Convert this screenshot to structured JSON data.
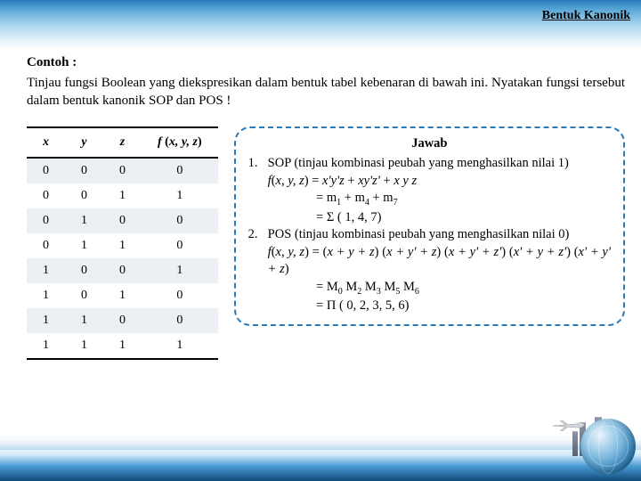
{
  "header": {
    "title": "Bentuk Kanonik"
  },
  "example": {
    "label": "Contoh :",
    "intro": "Tinjau fungsi Boolean yang diekspresikan dalam bentuk tabel kebenaran di bawah ini. Nyatakan fungsi tersebut dalam bentuk kanonik SOP dan POS !"
  },
  "table": {
    "headers": [
      "x",
      "y",
      "z",
      "f (x, y, z)"
    ],
    "rows": [
      [
        "0",
        "0",
        "0",
        "0"
      ],
      [
        "0",
        "0",
        "1",
        "1"
      ],
      [
        "0",
        "1",
        "0",
        "0"
      ],
      [
        "0",
        "1",
        "1",
        "0"
      ],
      [
        "1",
        "0",
        "0",
        "1"
      ],
      [
        "1",
        "0",
        "1",
        "0"
      ],
      [
        "1",
        "1",
        "0",
        "0"
      ],
      [
        "1",
        "1",
        "1",
        "1"
      ]
    ]
  },
  "answer": {
    "title": "Jawab",
    "items": [
      {
        "num": "1.",
        "lead": "SOP (tinjau kombinasi peubah yang menghasilkan nilai 1)",
        "lines": [
          "<i>f</i>(<i>x, y, z</i>) = <i>x'y'z</i> + <i>xy'z'</i> + <i>x y z</i>",
          "= m<span class='sub'>1</span> + m<span class='sub'>4</span> + m<span class='sub'>7</span>",
          "= Σ ( 1, 4, 7)"
        ]
      },
      {
        "num": "2.",
        "lead": "POS (tinjau kombinasi peubah yang menghasilkan nilai 0)",
        "lines": [
          "<i>f</i>(<i>x, y, z</i>) = (<i>x + y + z</i>) (<i>x + y' + z</i>) (<i>x + y' + z'</i>) (<i>x' + y + z'</i>) (<i>x' + y' + z</i>)",
          "= M<span class='sub'>0</span> M<span class='sub'>2</span> M<span class='sub'>3</span> M<span class='sub'>5</span> M<span class='sub'>6</span>",
          "= Π ( 0, 2, 3, 5, 6)"
        ]
      }
    ]
  },
  "style": {
    "primary_color": "#2a7ab8",
    "table_alt_row": "#eceff3"
  }
}
